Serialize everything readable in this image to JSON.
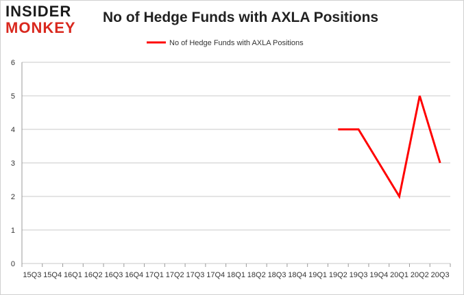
{
  "logo": {
    "line1": "INSIDER",
    "line2": "MONKEY"
  },
  "colors": {
    "series": "#ff0000",
    "grid": "#c8c8c8",
    "brand_red": "#d9281e"
  },
  "chart_data": {
    "type": "line",
    "title": "No of Hedge Funds with AXLA Positions",
    "xlabel": "",
    "ylabel": "",
    "ylim": [
      0,
      6
    ],
    "yticks": [
      0,
      1,
      2,
      3,
      4,
      5,
      6
    ],
    "grid": true,
    "legend_placement": "top",
    "categories": [
      "15Q3",
      "15Q4",
      "16Q1",
      "16Q2",
      "16Q3",
      "16Q4",
      "17Q1",
      "17Q2",
      "17Q3",
      "17Q4",
      "18Q1",
      "18Q2",
      "18Q3",
      "18Q4",
      "19Q1",
      "19Q2",
      "19Q3",
      "19Q4",
      "20Q1",
      "20Q2",
      "20Q3"
    ],
    "series": [
      {
        "name": "No of Hedge Funds with AXLA Positions",
        "values": [
          null,
          null,
          null,
          null,
          null,
          null,
          null,
          null,
          null,
          null,
          null,
          null,
          null,
          null,
          null,
          4,
          4,
          3,
          2,
          5,
          3
        ]
      }
    ]
  }
}
